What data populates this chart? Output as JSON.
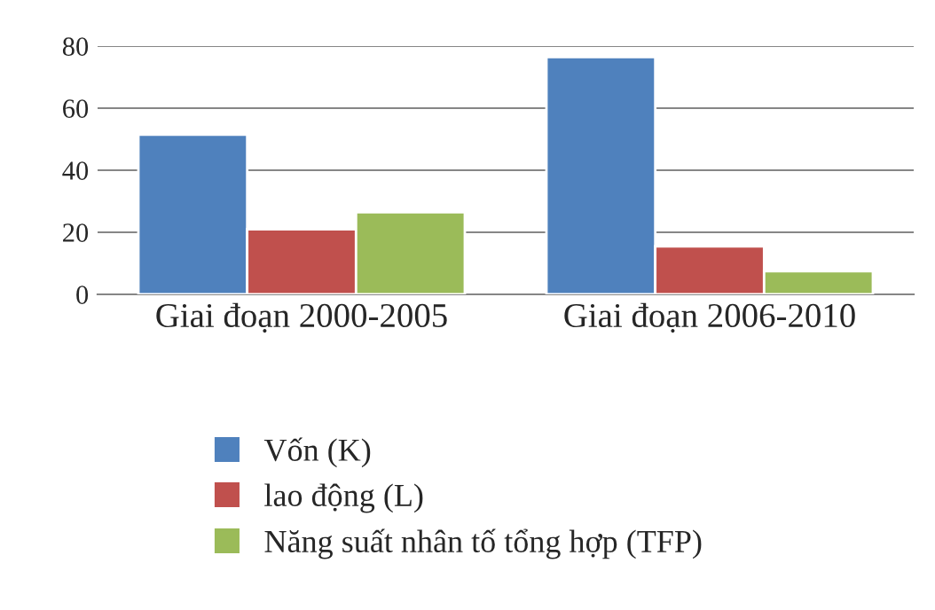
{
  "chart_data": {
    "type": "bar",
    "categories": [
      "Giai đoạn 2000-2005",
      "Giai đoạn 2006-2010"
    ],
    "series": [
      {
        "name": "Vốn (K)",
        "color": "#4f81bd",
        "values": [
          51.5,
          76.5
        ]
      },
      {
        "name": "lao động (L)",
        "color": "#c0504d",
        "values": [
          21,
          15.5
        ]
      },
      {
        "name": "Năng suất nhân tố tổng hợp (TFP)",
        "color": "#9bbb59",
        "values": [
          26.5,
          7.5
        ]
      }
    ],
    "ylim": [
      0,
      80
    ],
    "yticks": [
      0,
      20,
      40,
      60,
      80
    ],
    "grid": "y",
    "legend": "bottom"
  }
}
